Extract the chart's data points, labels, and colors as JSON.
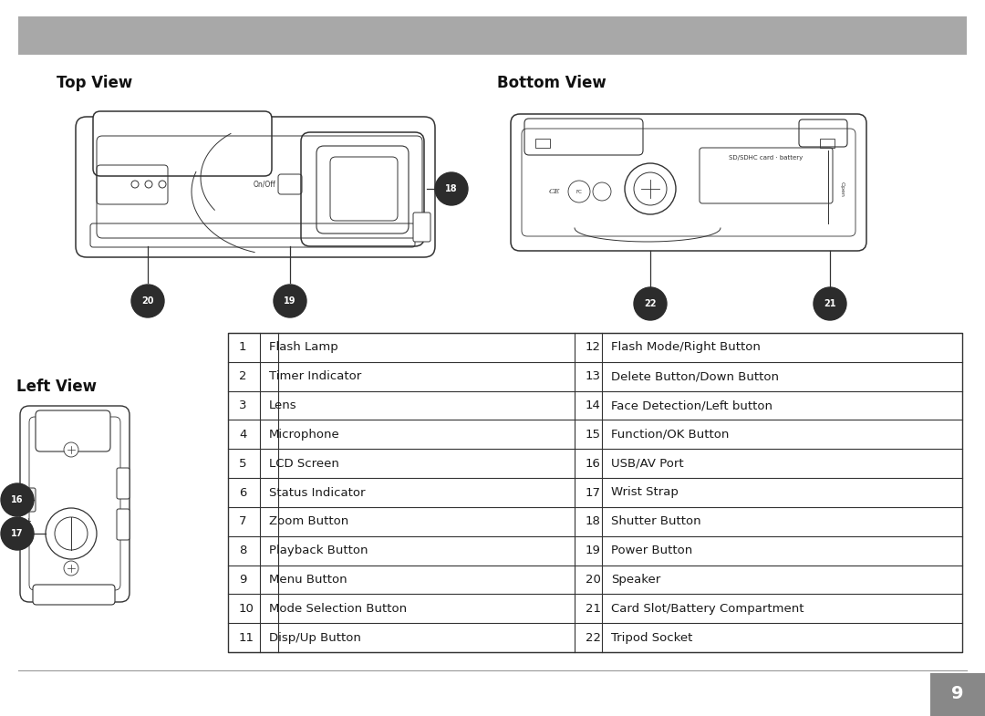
{
  "bg_color": "#ffffff",
  "header_bar_color": "#a8a8a8",
  "top_view_label": "Top View",
  "bottom_view_label": "Bottom View",
  "left_view_label": "Left View",
  "page_number": "9",
  "table_data_left": [
    [
      "1",
      "Flash Lamp"
    ],
    [
      "2",
      "Timer Indicator"
    ],
    [
      "3",
      "Lens"
    ],
    [
      "4",
      "Microphone"
    ],
    [
      "5",
      "LCD Screen"
    ],
    [
      "6",
      "Status Indicator"
    ],
    [
      "7",
      "Zoom Button"
    ],
    [
      "8",
      "Playback Button"
    ],
    [
      "9",
      "Menu Button"
    ],
    [
      "10",
      "Mode Selection Button"
    ],
    [
      "11",
      "Disp/Up Button"
    ]
  ],
  "table_data_right": [
    [
      "12",
      "Flash Mode/Right Button"
    ],
    [
      "13",
      "Delete Button/Down Button"
    ],
    [
      "14",
      "Face Detection/Left button"
    ],
    [
      "15",
      "Function/OK Button"
    ],
    [
      "16",
      "USB/AV Port"
    ],
    [
      "17",
      "Wrist Strap"
    ],
    [
      "18",
      "Shutter Button"
    ],
    [
      "19",
      "Power Button"
    ],
    [
      "20",
      "Speaker"
    ],
    [
      "21",
      "Card Slot/Battery Compartment"
    ],
    [
      "22",
      "Tripod Socket"
    ]
  ],
  "text_color": "#1a1a1a",
  "label_fontsize": 12,
  "table_fontsize": 9.5,
  "callout_color": "#2c2c2c"
}
